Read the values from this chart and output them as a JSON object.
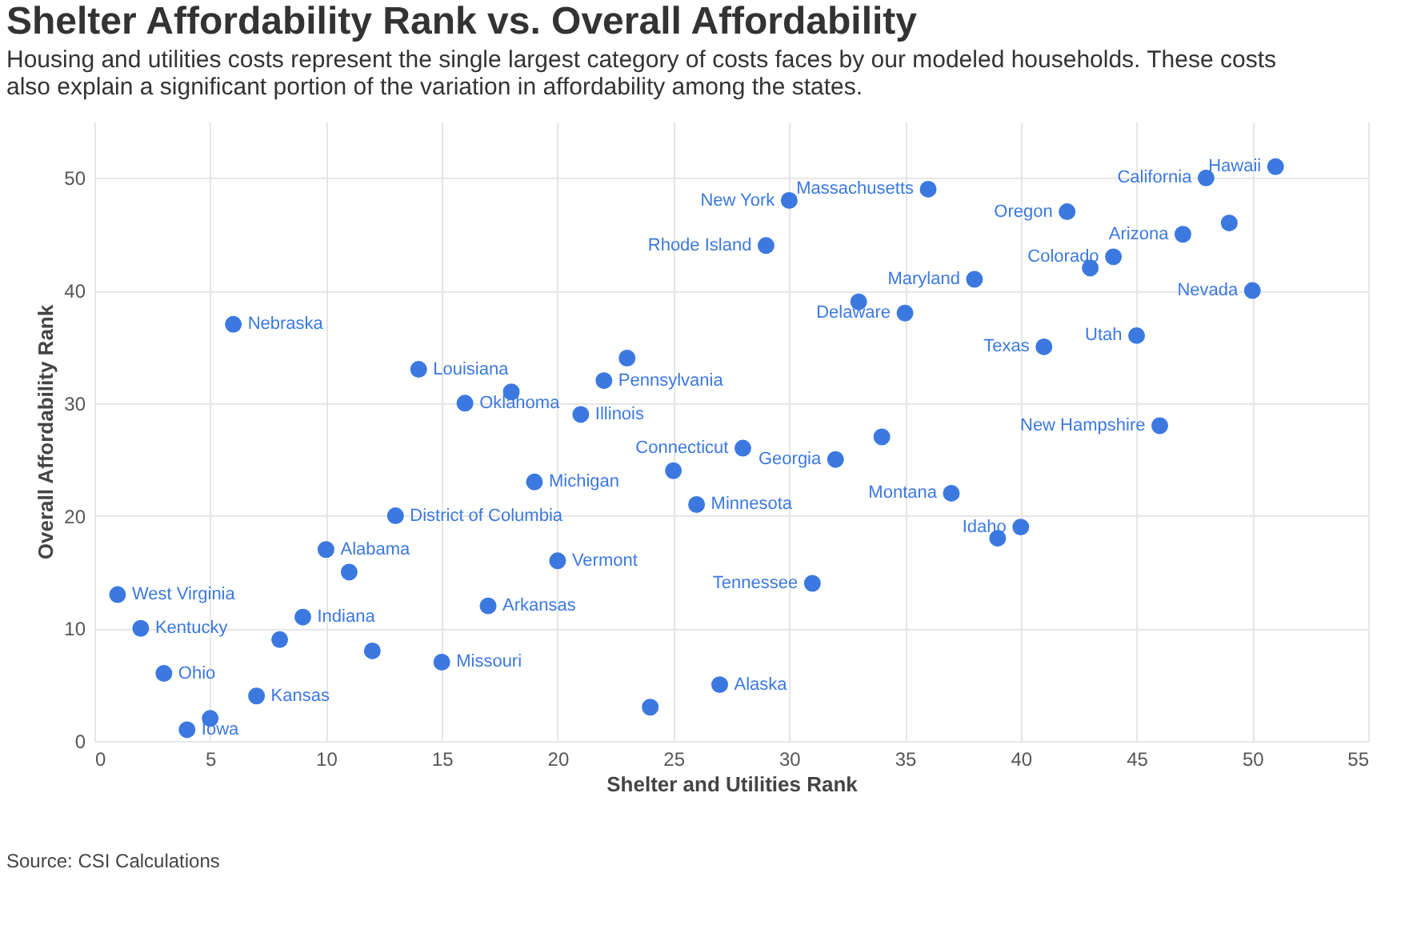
{
  "chart_data": {
    "type": "scatter",
    "title": "Shelter Affordability Rank vs. Overall Affordability",
    "subtitle": "Housing and utilities costs represent the single largest category of costs faces by our modeled households. These costs also explain a significant portion of the variation in affordability among the states.",
    "xlabel": "Shelter and Utilities Rank",
    "ylabel": "Overall Affordability Rank",
    "x": [
      6,
      14,
      18,
      16,
      23,
      22,
      21,
      28,
      25,
      19,
      26,
      13,
      10,
      11,
      20,
      1,
      17,
      9,
      2,
      8,
      12,
      15,
      3,
      7,
      5,
      4,
      24,
      27,
      31,
      32,
      34,
      37,
      40,
      39,
      46,
      41,
      45,
      50,
      35,
      33,
      38,
      44,
      43,
      47,
      49,
      42,
      48,
      51,
      36,
      30,
      29
    ],
    "series": [
      {
        "color": "#3b78e0",
        "values": [
          37,
          33,
          31,
          30,
          34,
          32,
          29,
          26,
          24,
          23,
          21,
          20,
          17,
          15,
          16,
          13,
          12,
          11,
          10,
          9,
          8,
          7,
          6,
          4,
          2,
          1,
          3,
          5,
          14,
          25,
          27,
          22,
          19,
          18,
          28,
          35,
          36,
          40,
          38,
          39,
          41,
          43,
          42,
          45,
          46,
          47,
          50,
          51,
          49,
          48,
          44
        ]
      }
    ],
    "xlim": [
      0,
      55
    ],
    "ylim": [
      0,
      55
    ],
    "xticks": [
      0,
      5,
      10,
      15,
      20,
      25,
      30,
      35,
      40,
      45,
      50,
      55
    ],
    "yticks": [
      0,
      10,
      20,
      30,
      40,
      50
    ],
    "grid": true,
    "marker": "circle",
    "annotations": [
      {
        "text": "Nebraska",
        "x": 6,
        "y": 37
      },
      {
        "text": "Louisiana",
        "x": 14,
        "y": 33
      },
      {
        "text": "Oklahoma",
        "x": 16,
        "y": 30
      },
      {
        "text": "Pennsylvania",
        "x": 22,
        "y": 32
      },
      {
        "text": "Illinois",
        "x": 21,
        "y": 29
      },
      {
        "text": "Connecticut",
        "x": 28,
        "y": 26
      },
      {
        "text": "Michigan",
        "x": 19,
        "y": 23
      },
      {
        "text": "Minnesota",
        "x": 26,
        "y": 21
      },
      {
        "text": "District of Columbia",
        "x": 13,
        "y": 20
      },
      {
        "text": "Alabama",
        "x": 10,
        "y": 17
      },
      {
        "text": "Vermont",
        "x": 20,
        "y": 16
      },
      {
        "text": "West Virginia",
        "x": 1,
        "y": 13
      },
      {
        "text": "Arkansas",
        "x": 17,
        "y": 12
      },
      {
        "text": "Indiana",
        "x": 9,
        "y": 11
      },
      {
        "text": "Kentucky",
        "x": 2,
        "y": 10
      },
      {
        "text": "Missouri",
        "x": 15,
        "y": 7
      },
      {
        "text": "Ohio",
        "x": 3,
        "y": 6
      },
      {
        "text": "Kansas",
        "x": 7,
        "y": 4
      },
      {
        "text": "Iowa",
        "x": 4,
        "y": 1
      },
      {
        "text": "Alaska",
        "x": 27,
        "y": 5
      },
      {
        "text": "Tennessee",
        "x": 31,
        "y": 14
      },
      {
        "text": "Georgia",
        "x": 32,
        "y": 25
      },
      {
        "text": "Montana",
        "x": 37,
        "y": 22
      },
      {
        "text": "Idaho",
        "x": 40,
        "y": 19
      },
      {
        "text": "New Hampshire",
        "x": 46,
        "y": 28
      },
      {
        "text": "Texas",
        "x": 41,
        "y": 35
      },
      {
        "text": "Utah",
        "x": 45,
        "y": 36
      },
      {
        "text": "Nevada",
        "x": 50,
        "y": 40
      },
      {
        "text": "Delaware",
        "x": 35,
        "y": 38
      },
      {
        "text": "Maryland",
        "x": 38,
        "y": 41
      },
      {
        "text": "Colorado",
        "x": 44,
        "y": 43
      },
      {
        "text": "Arizona",
        "x": 47,
        "y": 45
      },
      {
        "text": "Oregon",
        "x": 42,
        "y": 47
      },
      {
        "text": "California",
        "x": 48,
        "y": 50
      },
      {
        "text": "Hawaii",
        "x": 51,
        "y": 51
      },
      {
        "text": "Massachusetts",
        "x": 36,
        "y": 49
      },
      {
        "text": "New York",
        "x": 30,
        "y": 48
      },
      {
        "text": "Rhode Island",
        "x": 29,
        "y": 44
      },
      "Source: CSI Calculations"
    ]
  }
}
